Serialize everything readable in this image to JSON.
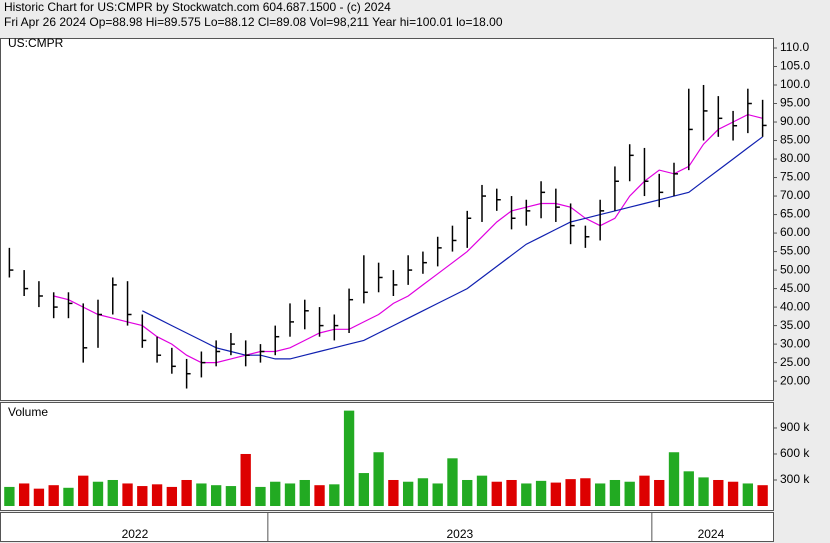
{
  "header": {
    "line1": "Historic Chart for US:CMPR by Stockwatch.com 604.687.1500 - (c) 2024",
    "line2": "Fri Apr 26 2024   Op=88.98   Hi=89.575   Lo=88.12   Cl=89.08   Vol=98,211   Year hi=100.01   lo=18.00"
  },
  "chart_data": [
    {
      "type": "ohlc",
      "title": "US:CMPR",
      "high": [
        56,
        50,
        47,
        44,
        44,
        41,
        42,
        48,
        47,
        38,
        32,
        29,
        26,
        28,
        31,
        33,
        31,
        30,
        35,
        41,
        42,
        40,
        38,
        45,
        54,
        52,
        50,
        54,
        55,
        59,
        62,
        66,
        73,
        72,
        70,
        69,
        74,
        72,
        68,
        62,
        69,
        78,
        84,
        83,
        76,
        79,
        99,
        100.01,
        97,
        93,
        99,
        96
      ],
      "low": [
        48,
        43,
        40,
        37,
        37,
        25,
        29,
        38,
        35,
        29,
        25,
        22,
        18,
        21,
        24,
        27,
        24,
        25,
        27,
        32,
        34,
        32,
        31,
        33,
        41,
        44,
        43,
        46,
        49,
        51,
        55,
        56,
        63,
        66,
        61,
        62,
        64,
        63,
        57,
        56,
        58,
        66,
        74,
        70,
        67,
        70,
        77,
        85,
        86,
        85,
        87,
        86
      ],
      "close": [
        50,
        45,
        43,
        40,
        41,
        29,
        38,
        46,
        38,
        31,
        27,
        24,
        22,
        25,
        28,
        30,
        27,
        28,
        32,
        36,
        39,
        35,
        35,
        42,
        44,
        48,
        46,
        50,
        52,
        56,
        58,
        64,
        70,
        69,
        64,
        66,
        71,
        67,
        62,
        59,
        66,
        74,
        81,
        74,
        71,
        76,
        88,
        93,
        91,
        89,
        95,
        89.08
      ],
      "color": "#000000",
      "series": [
        {
          "color": "#e000e0",
          "values": [
            null,
            null,
            null,
            43,
            42,
            40,
            38,
            37,
            36,
            35,
            32,
            30,
            27,
            25,
            25,
            26,
            27,
            28,
            28,
            29,
            31,
            33,
            34,
            34,
            36,
            38,
            41,
            43,
            46,
            49,
            52,
            55,
            59,
            63,
            66,
            67,
            68,
            68,
            67,
            64,
            62,
            64,
            70,
            74,
            77,
            76,
            78,
            84,
            88,
            90,
            92,
            91
          ]
        },
        {
          "color": "#1020b0",
          "values": [
            null,
            null,
            null,
            null,
            null,
            null,
            null,
            null,
            null,
            39,
            37,
            35,
            33,
            31,
            29,
            28,
            27,
            27,
            26,
            26,
            27,
            28,
            29,
            30,
            31,
            33,
            35,
            37,
            39,
            41,
            43,
            45,
            48,
            51,
            54,
            57,
            59,
            61,
            63,
            64,
            65,
            66,
            67,
            68,
            69,
            70,
            71,
            74,
            77,
            80,
            83,
            86
          ]
        }
      ],
      "ylim": [
        14.9,
        112.7
      ],
      "yticks": [
        {
          "value": 20,
          "label": "20.00"
        },
        {
          "value": 25,
          "label": "25.00"
        },
        {
          "value": 30,
          "label": "30.00"
        },
        {
          "value": 35,
          "label": "35.00"
        },
        {
          "value": 40,
          "label": "40.00"
        },
        {
          "value": 45,
          "label": "45.00"
        },
        {
          "value": 50,
          "label": "50.00"
        },
        {
          "value": 55,
          "label": "55.00"
        },
        {
          "value": 60,
          "label": "60.00"
        },
        {
          "value": 65,
          "label": "65.00"
        },
        {
          "value": 70,
          "label": "70.00"
        },
        {
          "value": 75,
          "label": "75.00"
        },
        {
          "value": 80,
          "label": "80.00"
        },
        {
          "value": 85,
          "label": "85.00"
        },
        {
          "value": 90,
          "label": "90.00"
        },
        {
          "value": 95,
          "label": "95.00"
        },
        {
          "value": 100,
          "label": "100.0"
        },
        {
          "value": 105,
          "label": "105.0"
        },
        {
          "value": 110,
          "label": "110.0"
        }
      ]
    },
    {
      "type": "volume",
      "title": "Volume",
      "values": [
        220000,
        260000,
        200000,
        240000,
        210000,
        350000,
        280000,
        300000,
        260000,
        230000,
        250000,
        220000,
        300000,
        260000,
        240000,
        230000,
        600000,
        220000,
        280000,
        260000,
        300000,
        240000,
        250000,
        1100000,
        380000,
        620000,
        300000,
        280000,
        320000,
        260000,
        550000,
        300000,
        350000,
        280000,
        300000,
        260000,
        290000,
        270000,
        310000,
        320000,
        260000,
        300000,
        280000,
        350000,
        300000,
        620000,
        400000,
        330000,
        300000,
        280000,
        260000,
        240000
      ],
      "up_color": "#22aa22",
      "down_color": "#dd0000",
      "ylim": [
        0,
        1188000
      ],
      "yticks": [
        {
          "value": 300000,
          "label": "300 k"
        },
        {
          "value": 600000,
          "label": "600 k"
        },
        {
          "value": 900000,
          "label": "900 k"
        }
      ],
      "years": [
        "2022",
        "2023",
        "2024"
      ],
      "year_bar_counts": [
        18,
        26,
        8
      ]
    }
  ]
}
